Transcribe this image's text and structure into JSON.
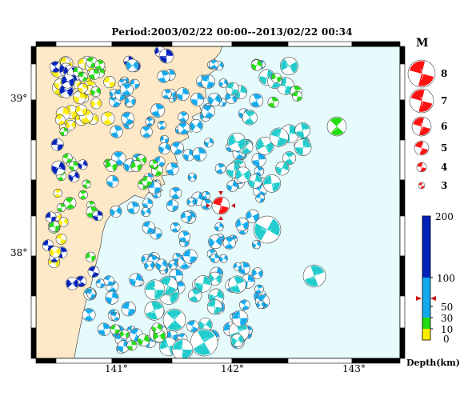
{
  "title": "Period:2003/02/22 00:00--2013/02/22 00:34",
  "colors": {
    "land": "#fde9c8",
    "sea": "#e6fbfc",
    "coast": "#333333",
    "depth_0_10": "#ffee00",
    "depth_10_30": "#22dd11",
    "depth_30_100": "#11aaee",
    "depth_100_200": "#0022bb",
    "shallow_large": "#22cccc",
    "scale": "#ff1111"
  },
  "map": {
    "lat_labels": [
      "39°",
      "38°"
    ],
    "lon_labels": [
      "141°",
      "142°",
      "143°"
    ],
    "main_event_label": "M"
  },
  "legend": {
    "title": "M",
    "magnitudes": [
      "8",
      "7",
      "6",
      "5",
      "4",
      "3"
    ]
  },
  "colorbar": {
    "labels": [
      "200",
      "100",
      "50",
      "30",
      "10",
      "0"
    ],
    "title": "Depth(km)",
    "marker_depth": 65
  }
}
